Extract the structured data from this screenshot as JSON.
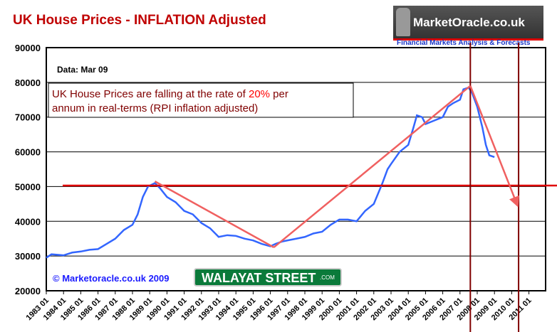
{
  "chart_data": {
    "type": "line",
    "title": "UK House Prices - INFLATION Adjusted",
    "logo": "MarketOracle.co.uk",
    "tagline": "Financial Markets Analysis & Forecasts",
    "data_label": "Data: Mar 09",
    "annotation": {
      "pre": "UK House Prices are falling at the rate of ",
      "highlight": "20%",
      "post": " per",
      "line2": "annum in real-terms (RPI inflation adjusted)"
    },
    "copyright": "© Marketoracle.co.uk  2009",
    "badge": {
      "main": "WALAYAT STREET",
      "suffix": ".COM"
    },
    "ylim": [
      20000,
      90000
    ],
    "yticks": [
      20000,
      30000,
      40000,
      50000,
      60000,
      70000,
      80000,
      90000
    ],
    "xlim": [
      1983,
      2011.9
    ],
    "xticks": [
      "1983 01",
      "1984 01",
      "1985 01",
      "1986 01",
      "1987 01",
      "1988 01",
      "1989 01",
      "1990 01",
      "1991 01",
      "1992 01",
      "1993 01",
      "1994 01",
      "1995 01",
      "1996 01",
      "1997 01",
      "1998 01",
      "1999 01",
      "2000 01",
      "2001 01",
      "2002 01",
      "2003 01",
      "2004 01",
      "2005 01",
      "2006 01",
      "2007 01",
      "2008 01",
      "2009 01",
      "2010 01",
      "2011 01"
    ],
    "grid": true,
    "series": [
      {
        "color": "#3366ff",
        "x": [
          1983,
          1983.3,
          1984,
          1984.5,
          1985,
          1985.5,
          1986,
          1986.5,
          1987,
          1987.5,
          1988,
          1988.3,
          1988.6,
          1988.9,
          1989.3,
          1989.6,
          1990,
          1990.5,
          1991,
          1991.5,
          1992,
          1992.5,
          1993,
          1993.5,
          1994,
          1994.5,
          1995,
          1995.5,
          1996,
          1996.3,
          1996.7,
          1997,
          1997.5,
          1998,
          1998.5,
          1999,
          1999.5,
          2000,
          2000.5,
          2001,
          2001.5,
          2002,
          2002.5,
          2002.8,
          2003,
          2003.5,
          2004,
          2004.3,
          2004.5,
          2004.8,
          2005,
          2005.5,
          2006,
          2006.3,
          2006.6,
          2007,
          2007.2,
          2007.5,
          2007.7,
          2008,
          2008.3,
          2008.5,
          2008.7,
          2009.0
        ],
        "y": [
          29500,
          30500,
          30200,
          31000,
          31300,
          31800,
          32000,
          33500,
          35000,
          37500,
          39000,
          42000,
          47000,
          50000,
          51000,
          49500,
          47000,
          45500,
          43000,
          42000,
          39500,
          38000,
          35500,
          36000,
          35800,
          35000,
          34500,
          33500,
          32800,
          33500,
          34200,
          34500,
          35000,
          35500,
          36500,
          37000,
          39000,
          40500,
          40500,
          40000,
          43000,
          45000,
          51000,
          55000,
          56500,
          60000,
          62000,
          67000,
          70500,
          70000,
          68000,
          69000,
          70000,
          73000,
          74000,
          75000,
          78000,
          78500,
          77000,
          73000,
          67000,
          62000,
          59000,
          58500
        ]
      }
    ],
    "trend_lines": [
      {
        "x": [
          1989.3,
          1996.2
        ],
        "y": [
          51500,
          32500
        ]
      },
      {
        "x": [
          1996.2,
          2007.6
        ],
        "y": [
          32500,
          79000
        ]
      },
      {
        "x": [
          2007.6,
          2010.3
        ],
        "y": [
          79000,
          45000
        ],
        "arrow": true
      }
    ],
    "trend_color": "#f06060",
    "horizontal_line": {
      "y": 50300,
      "color": "#e00000"
    },
    "vertical_lines": {
      "x": [
        2007.6,
        2010.4
      ],
      "color": "#800000"
    }
  }
}
